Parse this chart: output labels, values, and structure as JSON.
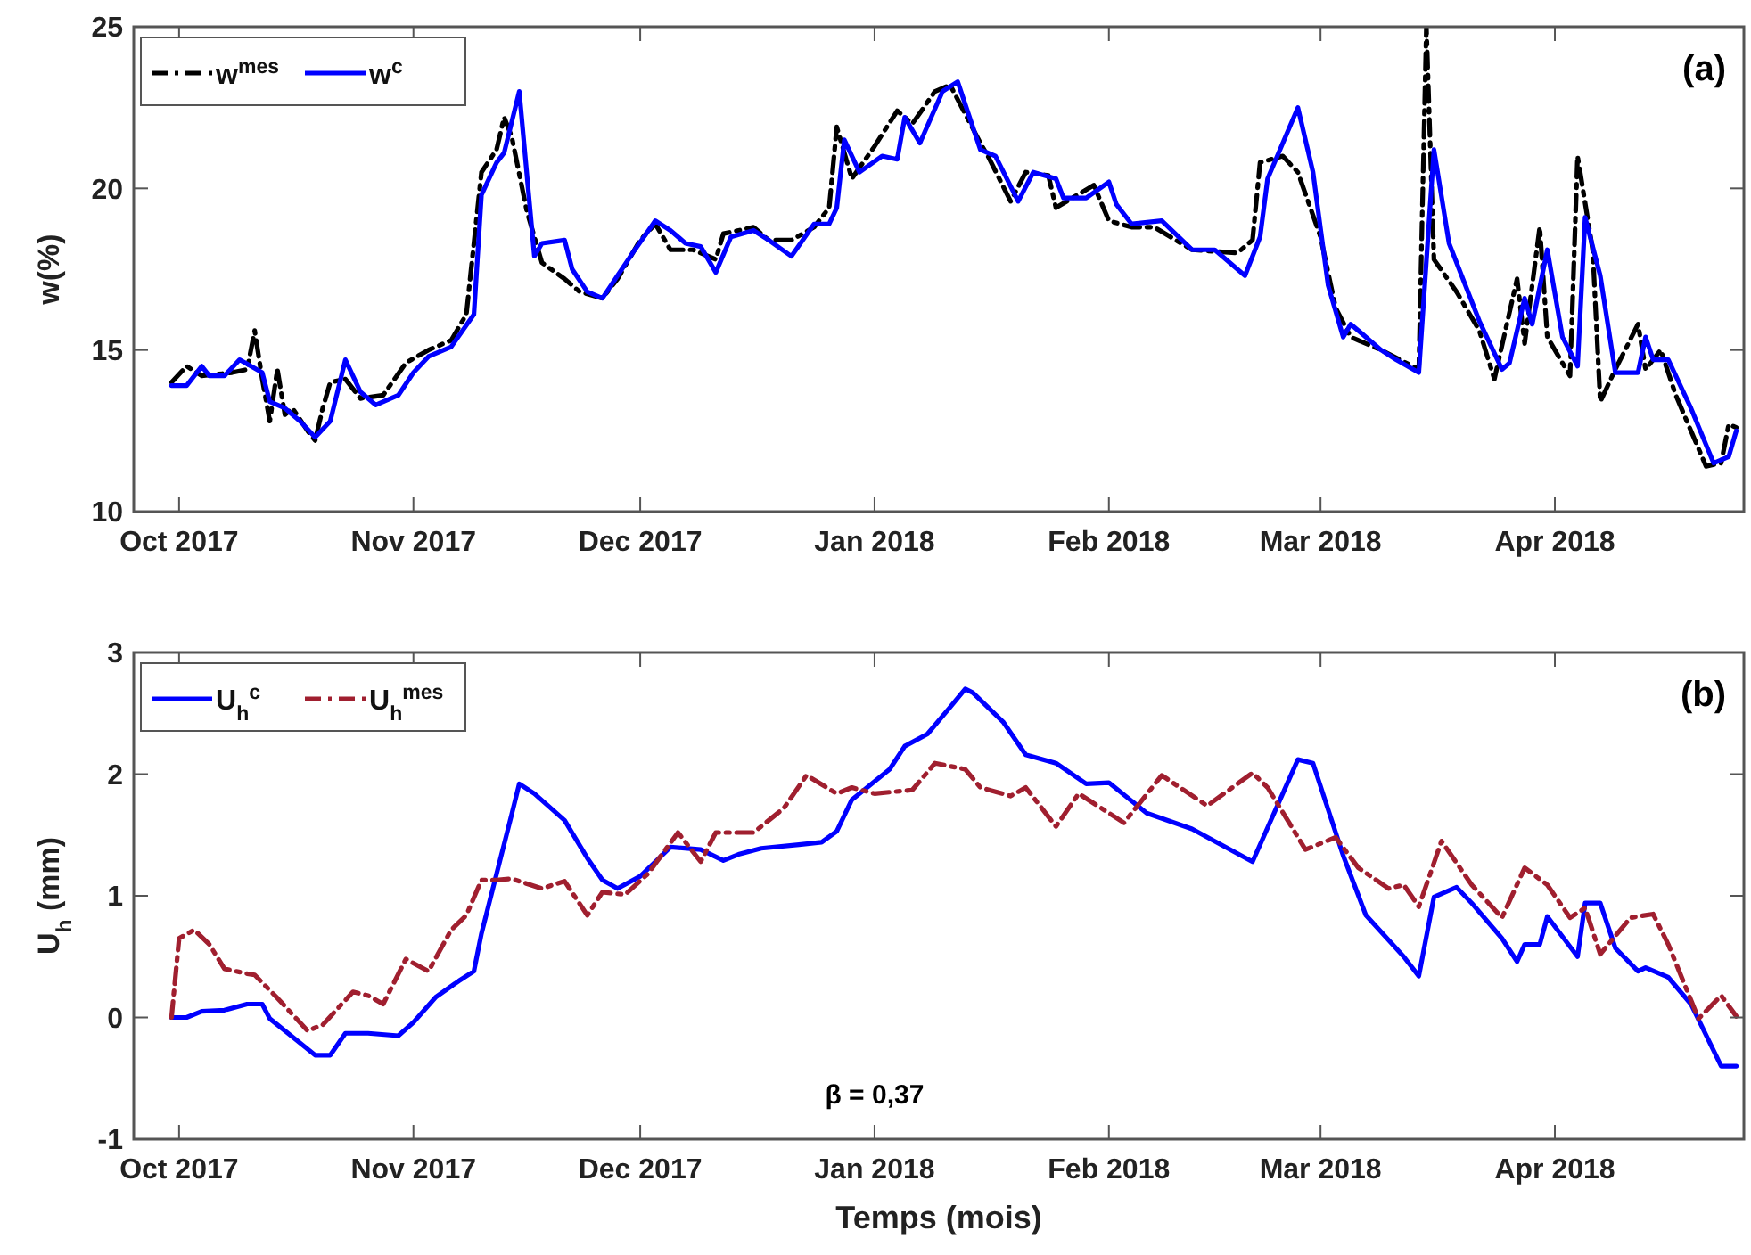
{
  "chart_data": [
    {
      "type": "line",
      "ylabel": "w(%)",
      "annotations": [
        "(a)"
      ],
      "legend": "top left",
      "xlim": [
        "2017-09-25",
        "2018-04-26"
      ],
      "ylim": [
        10,
        25
      ],
      "yticks": [
        10,
        15,
        20,
        25
      ],
      "xticks": [
        {
          "value": "2017-10-01",
          "label": "Oct 2017"
        },
        {
          "value": "2017-11-01",
          "label": "Nov 2017"
        },
        {
          "value": "2017-12-01",
          "label": "Dec 2017"
        },
        {
          "value": "2018-01-01",
          "label": "Jan 2018"
        },
        {
          "value": "2018-02-01",
          "label": "Feb 2018"
        },
        {
          "value": "2018-03-01",
          "label": "Mar 2018"
        },
        {
          "value": "2018-04-01",
          "label": "Apr 2018"
        }
      ],
      "series": [
        {
          "name": "w$^{mes}$",
          "color": "#000000",
          "line_style": "dashed",
          "x": [
            "2017-09-30",
            "2017-10-02",
            "2017-10-04",
            "2017-10-08",
            "2017-10-10",
            "2017-10-11",
            "2017-10-12",
            "2017-10-13",
            "2017-10-14",
            "2017-10-15",
            "2017-10-16",
            "2017-10-18",
            "2017-10-19",
            "2017-10-20",
            "2017-10-21",
            "2017-10-23",
            "2017-10-25",
            "2017-10-28",
            "2017-10-31",
            "2017-11-03",
            "2017-11-06",
            "2017-11-08",
            "2017-11-10",
            "2017-11-12",
            "2017-11-13",
            "2017-11-14",
            "2017-11-16",
            "2017-11-18",
            "2017-11-21",
            "2017-11-23",
            "2017-11-26",
            "2017-11-28",
            "2017-12-01",
            "2017-12-03",
            "2017-12-05",
            "2017-12-08",
            "2017-12-11",
            "2017-12-12",
            "2017-12-16",
            "2017-12-18",
            "2017-12-21",
            "2017-12-24",
            "2017-12-26",
            "2017-12-27",
            "2017-12-29",
            "2018-01-01",
            "2018-01-04",
            "2018-01-06",
            "2018-01-09",
            "2018-01-11",
            "2018-01-15",
            "2018-01-16",
            "2018-01-19",
            "2018-01-21",
            "2018-01-24",
            "2018-01-25",
            "2018-01-30",
            "2018-02-01",
            "2018-02-04",
            "2018-02-07",
            "2018-02-12",
            "2018-02-18",
            "2018-02-20",
            "2018-02-21",
            "2018-02-24",
            "2018-02-26",
            "2018-03-01",
            "2018-03-03",
            "2018-03-05",
            "2018-03-09",
            "2018-03-14",
            "2018-03-15",
            "2018-03-16",
            "2018-03-19",
            "2018-03-22",
            "2018-03-24",
            "2018-03-27",
            "2018-03-28",
            "2018-03-30",
            "2018-03-31",
            "2018-04-03",
            "2018-04-04",
            "2018-04-06",
            "2018-04-07",
            "2018-04-09",
            "2018-04-12",
            "2018-04-13",
            "2018-04-15",
            "2018-04-17",
            "2018-04-21",
            "2018-04-23",
            "2018-04-24",
            "2018-04-25"
          ],
          "values": [
            14.0,
            14.5,
            14.2,
            14.3,
            14.4,
            15.6,
            14.1,
            12.8,
            14.4,
            13.0,
            13.2,
            12.5,
            12.2,
            13.2,
            14.0,
            14.1,
            13.5,
            13.6,
            14.6,
            15.0,
            15.3,
            16.1,
            20.5,
            21.2,
            22.2,
            21.6,
            19.3,
            17.7,
            17.2,
            16.8,
            16.6,
            17.2,
            18.4,
            18.9,
            18.1,
            18.1,
            17.8,
            18.6,
            18.8,
            18.4,
            18.4,
            18.8,
            19.4,
            21.9,
            20.3,
            21.3,
            22.4,
            22.0,
            23.0,
            23.2,
            21.4,
            21.0,
            19.6,
            20.5,
            20.4,
            19.4,
            20.1,
            19.0,
            18.8,
            18.8,
            18.1,
            18.0,
            18.4,
            20.8,
            21.0,
            20.5,
            18.5,
            16.3,
            15.4,
            15.0,
            14.4,
            25.0,
            17.8,
            16.8,
            15.6,
            14.1,
            17.2,
            15.2,
            18.8,
            15.4,
            14.2,
            21.0,
            18.1,
            13.4,
            14.4,
            15.8,
            14.4,
            15.0,
            13.6,
            11.4,
            11.5,
            12.7,
            12.6
          ]
        },
        {
          "name": "w$^{c}$",
          "color": "#0000ff",
          "line_style": "solid",
          "x": [
            "2017-09-30",
            "2017-10-02",
            "2017-10-04",
            "2017-10-05",
            "2017-10-07",
            "2017-10-09",
            "2017-10-12",
            "2017-10-13",
            "2017-10-15",
            "2017-10-17",
            "2017-10-19",
            "2017-10-21",
            "2017-10-23",
            "2017-10-25",
            "2017-10-27",
            "2017-10-30",
            "2017-11-01",
            "2017-11-03",
            "2017-11-06",
            "2017-11-09",
            "2017-11-10",
            "2017-11-12",
            "2017-11-13",
            "2017-11-15",
            "2017-11-17",
            "2017-11-18",
            "2017-11-21",
            "2017-11-22",
            "2017-11-24",
            "2017-11-26",
            "2017-11-28",
            "2017-11-30",
            "2017-12-03",
            "2017-12-05",
            "2017-12-07",
            "2017-12-09",
            "2017-12-11",
            "2017-12-13",
            "2017-12-16",
            "2017-12-18",
            "2017-12-21",
            "2017-12-24",
            "2017-12-26",
            "2017-12-27",
            "2017-12-28",
            "2017-12-30",
            "2018-01-02",
            "2018-01-04",
            "2018-01-05",
            "2018-01-07",
            "2018-01-10",
            "2018-01-12",
            "2018-01-15",
            "2018-01-17",
            "2018-01-20",
            "2018-01-22",
            "2018-01-25",
            "2018-01-26",
            "2018-01-29",
            "2018-02-01",
            "2018-02-02",
            "2018-02-04",
            "2018-02-08",
            "2018-02-12",
            "2018-02-15",
            "2018-02-19",
            "2018-02-21",
            "2018-02-22",
            "2018-02-26",
            "2018-02-28",
            "2018-03-02",
            "2018-03-04",
            "2018-03-05",
            "2018-03-09",
            "2018-03-11",
            "2018-03-14",
            "2018-03-16",
            "2018-03-18",
            "2018-03-22",
            "2018-03-25",
            "2018-03-26",
            "2018-03-28",
            "2018-03-29",
            "2018-03-31",
            "2018-04-02",
            "2018-04-04",
            "2018-04-05",
            "2018-04-07",
            "2018-04-09",
            "2018-04-12",
            "2018-04-13",
            "2018-04-14",
            "2018-04-16",
            "2018-04-19",
            "2018-04-22",
            "2018-04-24",
            "2018-04-25"
          ],
          "values": [
            13.9,
            13.9,
            14.5,
            14.2,
            14.2,
            14.7,
            14.3,
            13.4,
            13.2,
            12.8,
            12.3,
            12.8,
            14.7,
            13.7,
            13.3,
            13.6,
            14.3,
            14.8,
            15.1,
            16.1,
            19.8,
            20.8,
            21.1,
            23.0,
            17.9,
            18.3,
            18.4,
            17.5,
            16.8,
            16.6,
            17.3,
            18.0,
            19.0,
            18.7,
            18.3,
            18.2,
            17.4,
            18.5,
            18.7,
            18.4,
            17.9,
            18.9,
            18.9,
            19.4,
            21.5,
            20.5,
            21.0,
            20.9,
            22.2,
            21.4,
            23.0,
            23.3,
            21.2,
            21.0,
            19.6,
            20.5,
            20.3,
            19.7,
            19.7,
            20.2,
            19.5,
            18.9,
            19.0,
            18.1,
            18.1,
            17.3,
            18.5,
            20.3,
            22.5,
            20.5,
            17.0,
            15.4,
            15.8,
            15.0,
            14.7,
            14.3,
            21.2,
            18.3,
            15.9,
            14.4,
            14.6,
            16.6,
            15.8,
            18.1,
            15.4,
            14.5,
            19.1,
            17.3,
            14.3,
            14.3,
            15.4,
            14.7,
            14.7,
            13.2,
            11.5,
            11.7,
            12.5
          ]
        }
      ]
    },
    {
      "type": "line",
      "xlabel": "Temps (mois)",
      "ylabel": "U$_{h}$ (mm)",
      "annotations": [
        "(b)",
        "β = 0,37"
      ],
      "legend": "top left",
      "xlim": [
        "2017-09-25",
        "2018-04-26"
      ],
      "ylim": [
        -1,
        3
      ],
      "yticks": [
        -1,
        0,
        1,
        2,
        3
      ],
      "xticks": [
        {
          "value": "2017-10-01",
          "label": "Oct 2017"
        },
        {
          "value": "2017-11-01",
          "label": "Nov 2017"
        },
        {
          "value": "2017-12-01",
          "label": "Dec 2017"
        },
        {
          "value": "2018-01-01",
          "label": "Jan 2018"
        },
        {
          "value": "2018-02-01",
          "label": "Feb 2018"
        },
        {
          "value": "2018-03-01",
          "label": "Mar 2018"
        },
        {
          "value": "2018-04-01",
          "label": "Apr 2018"
        }
      ],
      "series": [
        {
          "name": "U$_{h}$$^{c}$",
          "color": "#0000ff",
          "line_style": "solid",
          "x": [
            "2017-09-30",
            "2017-10-02",
            "2017-10-04",
            "2017-10-07",
            "2017-10-10",
            "2017-10-12",
            "2017-10-13",
            "2017-10-16",
            "2017-10-19",
            "2017-10-21",
            "2017-10-23",
            "2017-10-26",
            "2017-10-30",
            "2017-11-01",
            "2017-11-04",
            "2017-11-07",
            "2017-11-09",
            "2017-11-10",
            "2017-11-12",
            "2017-11-14",
            "2017-11-15",
            "2017-11-17",
            "2017-11-21",
            "2017-11-24",
            "2017-11-26",
            "2017-11-28",
            "2017-12-01",
            "2017-12-03",
            "2017-12-05",
            "2017-12-09",
            "2017-12-12",
            "2017-12-14",
            "2017-12-17",
            "2017-12-22",
            "2017-12-25",
            "2017-12-27",
            "2017-12-29",
            "2018-01-01",
            "2018-01-03",
            "2018-01-05",
            "2018-01-08",
            "2018-01-11",
            "2018-01-13",
            "2018-01-14",
            "2018-01-18",
            "2018-01-21",
            "2018-01-25",
            "2018-01-29",
            "2018-02-01",
            "2018-02-06",
            "2018-02-12",
            "2018-02-20",
            "2018-02-26",
            "2018-02-28",
            "2018-03-04",
            "2018-03-07",
            "2018-03-12",
            "2018-03-14",
            "2018-03-16",
            "2018-03-19",
            "2018-03-21",
            "2018-03-25",
            "2018-03-27",
            "2018-03-28",
            "2018-03-30",
            "2018-03-31",
            "2018-04-04",
            "2018-04-05",
            "2018-04-07",
            "2018-04-09",
            "2018-04-12",
            "2018-04-13",
            "2018-04-16",
            "2018-04-19",
            "2018-04-23",
            "2018-04-25"
          ],
          "values": [
            0.0,
            0.0,
            0.05,
            0.06,
            0.11,
            0.11,
            -0.01,
            -0.16,
            -0.31,
            -0.31,
            -0.13,
            -0.13,
            -0.15,
            -0.04,
            0.17,
            0.3,
            0.38,
            0.69,
            1.18,
            1.67,
            1.92,
            1.84,
            1.62,
            1.31,
            1.13,
            1.06,
            1.16,
            1.28,
            1.4,
            1.38,
            1.29,
            1.34,
            1.39,
            1.42,
            1.44,
            1.53,
            1.79,
            1.94,
            2.04,
            2.23,
            2.33,
            2.55,
            2.7,
            2.67,
            2.43,
            2.16,
            2.09,
            1.92,
            1.93,
            1.68,
            1.55,
            1.28,
            2.12,
            2.09,
            1.33,
            0.84,
            0.5,
            0.34,
            0.99,
            1.07,
            0.94,
            0.65,
            0.46,
            0.6,
            0.6,
            0.83,
            0.5,
            0.94,
            0.94,
            0.57,
            0.38,
            0.41,
            0.33,
            0.11,
            -0.4,
            -0.4
          ]
        },
        {
          "name": "U$_{h}$$^{mes}$",
          "color": "#a01f2f",
          "line_style": "dashed",
          "x": [
            "2017-09-30",
            "2017-10-01",
            "2017-10-03",
            "2017-10-05",
            "2017-10-07",
            "2017-10-10",
            "2017-10-11",
            "2017-10-14",
            "2017-10-18",
            "2017-10-20",
            "2017-10-24",
            "2017-10-26",
            "2017-10-28",
            "2017-10-31",
            "2017-11-03",
            "2017-11-06",
            "2017-11-08",
            "2017-11-10",
            "2017-11-12",
            "2017-11-14",
            "2017-11-18",
            "2017-11-21",
            "2017-11-24",
            "2017-11-26",
            "2017-11-29",
            "2017-12-02",
            "2017-12-04",
            "2017-12-06",
            "2017-12-09",
            "2017-12-11",
            "2017-12-16",
            "2017-12-20",
            "2017-12-23",
            "2017-12-27",
            "2017-12-29",
            "2018-01-01",
            "2018-01-06",
            "2018-01-09",
            "2018-01-13",
            "2018-01-15",
            "2018-01-19",
            "2018-01-21",
            "2018-01-25",
            "2018-01-28",
            "2018-02-03",
            "2018-02-08",
            "2018-02-14",
            "2018-02-20",
            "2018-02-22",
            "2018-02-27",
            "2018-03-03",
            "2018-03-06",
            "2018-03-10",
            "2018-03-12",
            "2018-03-14",
            "2018-03-17",
            "2018-03-21",
            "2018-03-25",
            "2018-03-28",
            "2018-03-31",
            "2018-04-03",
            "2018-04-05",
            "2018-04-07",
            "2018-04-11",
            "2018-04-14",
            "2018-04-16",
            "2018-04-20",
            "2018-04-23",
            "2018-04-25"
          ],
          "values": [
            0.0,
            0.65,
            0.72,
            0.6,
            0.4,
            0.36,
            0.35,
            0.16,
            -0.11,
            -0.06,
            0.21,
            0.18,
            0.11,
            0.48,
            0.38,
            0.72,
            0.84,
            1.13,
            1.13,
            1.14,
            1.06,
            1.12,
            0.84,
            1.03,
            1.01,
            1.18,
            1.35,
            1.52,
            1.28,
            1.52,
            1.52,
            1.72,
            1.99,
            1.84,
            1.89,
            1.84,
            1.87,
            2.09,
            2.04,
            1.89,
            1.82,
            1.89,
            1.57,
            1.84,
            1.6,
            1.99,
            1.74,
            2.01,
            1.89,
            1.38,
            1.48,
            1.23,
            1.06,
            1.09,
            0.91,
            1.45,
            1.09,
            0.82,
            1.23,
            1.09,
            0.82,
            0.9,
            0.52,
            0.82,
            0.85,
            0.6,
            -0.01,
            0.18,
            0.01
          ]
        }
      ]
    }
  ]
}
